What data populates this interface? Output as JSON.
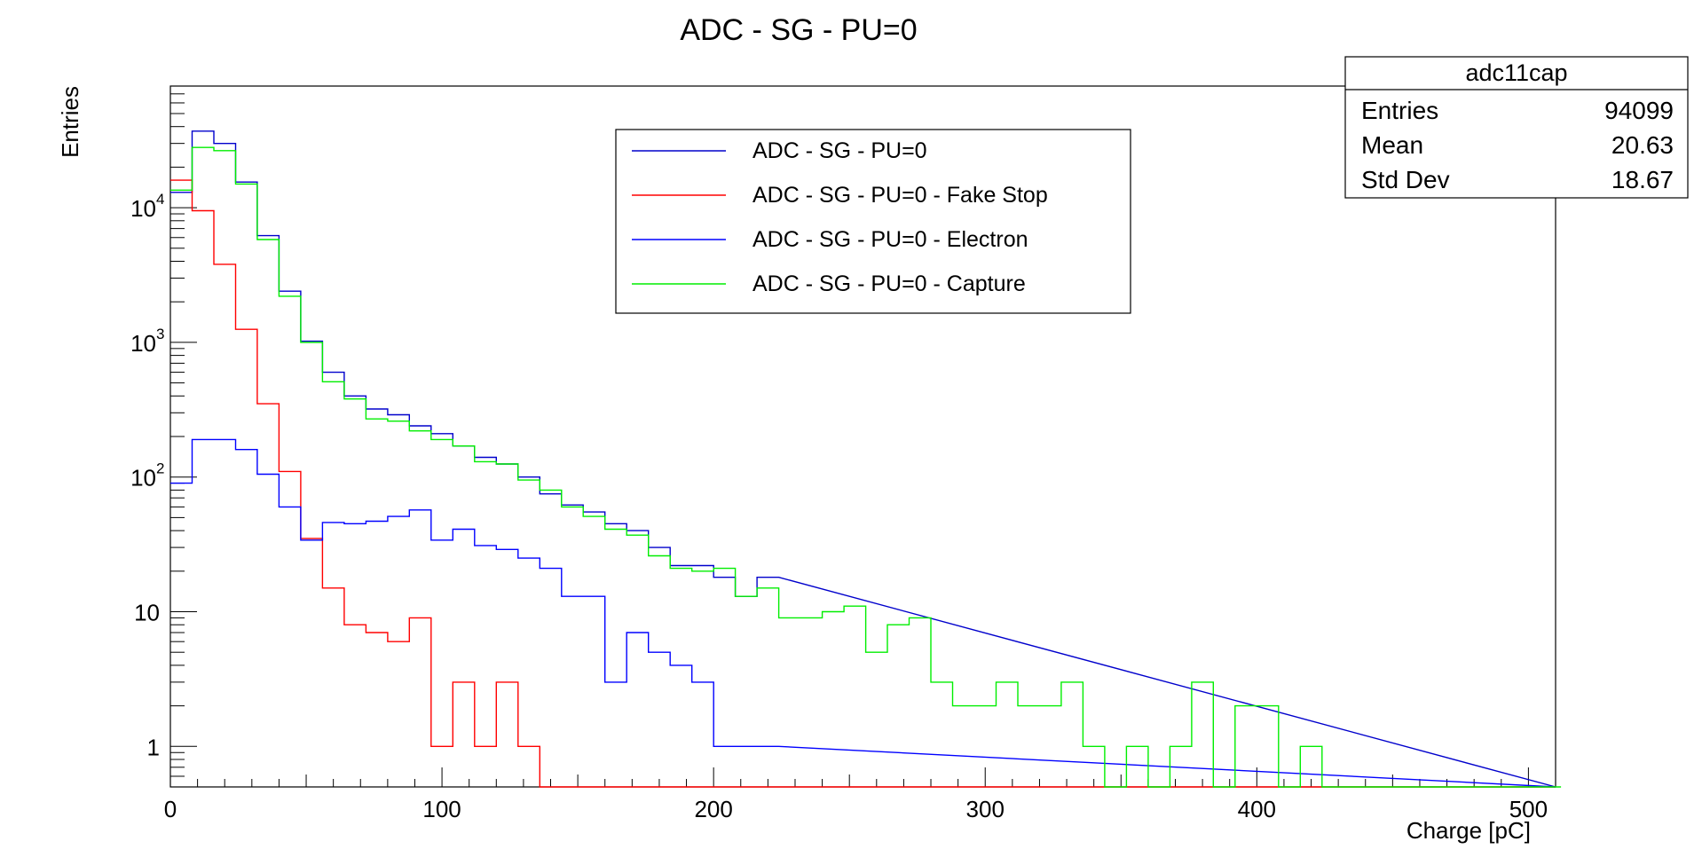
{
  "chart_data": {
    "type": "histogram",
    "title": "ADC - SG - PU=0",
    "xlabel": "Charge [pC]",
    "ylabel": "Entries",
    "xlim": [
      0,
      510
    ],
    "ylim": [
      0.5,
      80000
    ],
    "yscale": "log",
    "bin_width": 8,
    "x_ticks": [
      "0",
      "100",
      "200",
      "300",
      "400",
      "500"
    ],
    "y_ticks": [
      {
        "base": "1",
        "exp": ""
      },
      {
        "base": "10",
        "exp": ""
      },
      {
        "base": "10",
        "exp": "2"
      },
      {
        "base": "10",
        "exp": "3"
      },
      {
        "base": "10",
        "exp": "4"
      }
    ],
    "stats": {
      "name": "adc11cap",
      "rows": [
        {
          "label": "Entries",
          "value": "94099"
        },
        {
          "label": "Mean",
          "value": "20.63"
        },
        {
          "label": "Std Dev",
          "value": "18.67"
        }
      ]
    },
    "legend_position": "top-center",
    "series": [
      {
        "name": "ADC - SG - PU=0",
        "color": "#0000cc",
        "x_start": 0,
        "x_end": 224,
        "values": [
          13000,
          37000,
          30000,
          15500,
          6200,
          2400,
          1020,
          600,
          400,
          320,
          290,
          240,
          210,
          170,
          140,
          125,
          100,
          75,
          62,
          55,
          45,
          40,
          30,
          22,
          22,
          18,
          13,
          18
        ]
      },
      {
        "name": "ADC - SG - PU=0 - Fake Stop",
        "color": "#ff0000",
        "x_start": 0,
        "x_end": 200,
        "values": [
          16000,
          9500,
          3800,
          1250,
          350,
          110,
          35,
          15,
          8,
          7,
          6,
          9,
          1,
          3,
          1,
          3,
          1,
          0,
          0,
          0,
          0,
          0,
          0,
          0,
          0
        ]
      },
      {
        "name": "ADC - SG - PU=0 - Electron",
        "color": "#0000ff",
        "x_start": 0,
        "x_end": 224,
        "values": [
          90,
          190,
          190,
          160,
          105,
          60,
          34,
          46,
          45,
          47,
          51,
          57,
          34,
          41,
          31,
          29,
          25,
          21,
          13,
          13,
          3,
          7,
          5,
          4,
          3,
          1,
          1,
          1
        ]
      },
      {
        "name": "ADC - SG - PU=0 - Capture",
        "color": "#00ee00",
        "x_start": 0,
        "x_end": 512,
        "values": [
          13500,
          28000,
          26500,
          15000,
          5800,
          2200,
          1000,
          510,
          380,
          270,
          260,
          220,
          190,
          170,
          130,
          125,
          95,
          80,
          60,
          51,
          41,
          37,
          26,
          21,
          20,
          21,
          13,
          15,
          9,
          9,
          10,
          11,
          5,
          8,
          9,
          3,
          2,
          2,
          3,
          2,
          2,
          3,
          1,
          0,
          1,
          0,
          1,
          3,
          0,
          2,
          2,
          0,
          1,
          0,
          0,
          0,
          0,
          0,
          0,
          0,
          0,
          0,
          0,
          0
        ]
      }
    ]
  }
}
